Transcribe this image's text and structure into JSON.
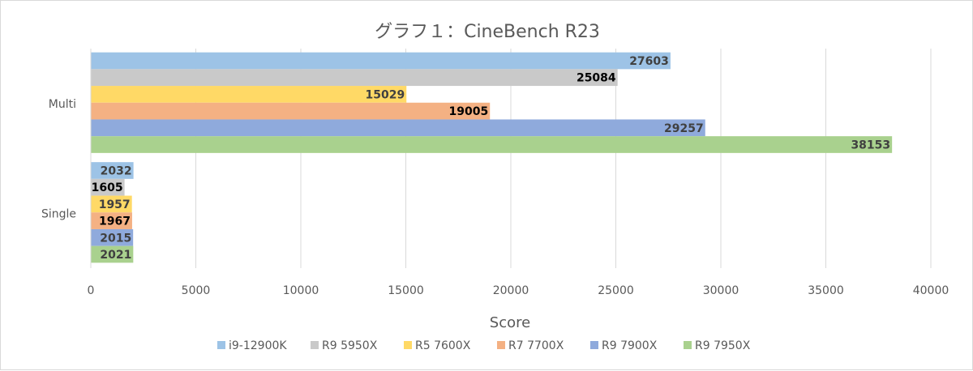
{
  "chart_data": {
    "type": "bar",
    "orientation": "horizontal",
    "title": "グラフ１：CineBench R23",
    "xlabel": "Score",
    "ylabel": "",
    "xlim": [
      0,
      40000
    ],
    "xticks": [
      0,
      5000,
      10000,
      15000,
      20000,
      25000,
      30000,
      35000,
      40000
    ],
    "categories": [
      "Multi",
      "Single"
    ],
    "grid": true,
    "legend_position": "bottom",
    "series": [
      {
        "name": "i9-12900K",
        "color": "#9dc3e6",
        "label_color": "#404040",
        "values": [
          27603,
          2032
        ]
      },
      {
        "name": "R9 5950X",
        "color": "#c9c9c9",
        "label_color": "#000000",
        "values": [
          25084,
          1605
        ]
      },
      {
        "name": "R5 7600X",
        "color": "#ffd966",
        "label_color": "#404040",
        "values": [
          15029,
          1957
        ]
      },
      {
        "name": "R7 7700X",
        "color": "#f4b183",
        "label_color": "#000000",
        "values": [
          19005,
          1967
        ]
      },
      {
        "name": "R9 7900X",
        "color": "#8faadc",
        "label_color": "#404040",
        "values": [
          29257,
          2015
        ]
      },
      {
        "name": "R9 7950X",
        "color": "#a9d18e",
        "label_color": "#404040",
        "values": [
          38153,
          2021
        ]
      }
    ]
  }
}
